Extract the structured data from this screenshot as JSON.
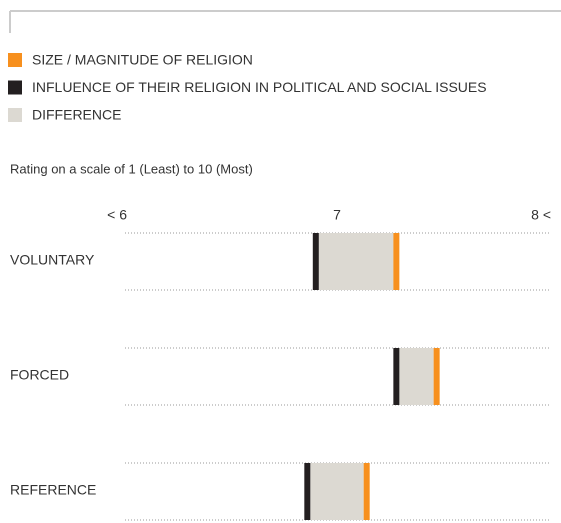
{
  "chart_data": {
    "type": "range",
    "subtitle": "Rating on a scale of 1 (Least) to 10 (Most)",
    "categories": [
      "VOLUNTARY",
      "FORCED",
      "REFERENCE"
    ],
    "series": [
      {
        "name": "SIZE / MAGNITUDE OF RELIGION",
        "color": "#f7901e",
        "values": [
          7.28,
          7.47,
          7.14
        ]
      },
      {
        "name": "INFLUENCE OF THEIR RELIGION IN POLITICAL AND SOCIAL ISSUES",
        "color": "#231f20",
        "values": [
          6.9,
          7.28,
          6.86
        ]
      }
    ],
    "difference": {
      "name": "DIFFERENCE",
      "color": "#dcd9d2"
    },
    "xlim": [
      6,
      8
    ],
    "xticks": [
      {
        "value": 6,
        "label": "< 6"
      },
      7,
      {
        "value": 8,
        "label": "8 <"
      }
    ]
  }
}
